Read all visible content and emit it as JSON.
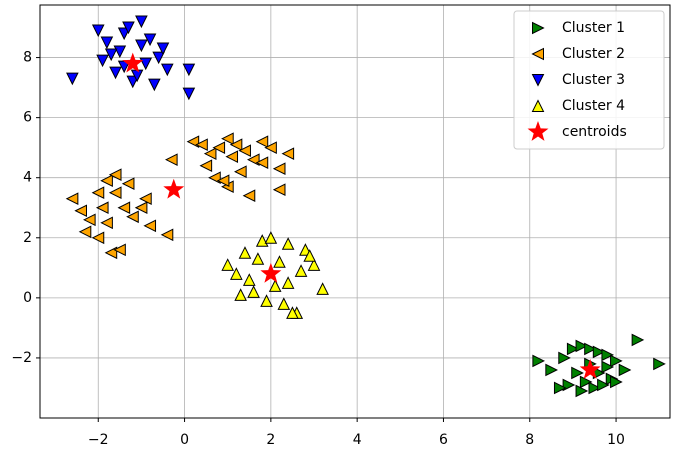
{
  "chart_data": {
    "type": "scatter",
    "xlim": [
      -3.35,
      11.25
    ],
    "ylim": [
      -4.0,
      9.75
    ],
    "xticks": [
      {
        "value": -2,
        "label": "−2"
      },
      0,
      2,
      4,
      6,
      8,
      10
    ],
    "yticks": [
      {
        "value": -2,
        "label": "−2"
      },
      0,
      2,
      4,
      6,
      8
    ],
    "grid": true,
    "legend_loc": "upper right",
    "series": [
      {
        "name": "Cluster 1",
        "color": "#008000",
        "marker": "triangle-right",
        "x": [
          8.8,
          9.0,
          9.2,
          9.4,
          9.6,
          9.8,
          10.0,
          10.2,
          9.1,
          9.3,
          9.5,
          9.7,
          9.9,
          8.9,
          9.2,
          9.6,
          10.0,
          8.5,
          8.2,
          10.5,
          11.0,
          9.4,
          9.8,
          8.7
        ],
        "y": [
          -2.0,
          -1.7,
          -1.6,
          -1.7,
          -1.8,
          -1.9,
          -2.1,
          -2.4,
          -2.5,
          -2.8,
          -3.0,
          -2.9,
          -2.7,
          -2.9,
          -3.1,
          -2.5,
          -2.8,
          -2.4,
          -2.1,
          -1.4,
          -2.2,
          -2.2,
          -2.3,
          -3.0
        ]
      },
      {
        "name": "Cluster 2",
        "color": "#ffa500",
        "marker": "triangle-left",
        "x": [
          -2.6,
          -2.4,
          -2.2,
          -2.0,
          -1.8,
          -1.6,
          -1.4,
          -1.2,
          -1.0,
          -0.8,
          -2.3,
          -2.0,
          -1.7,
          -1.5,
          -1.9,
          -1.6,
          -1.3,
          -0.9,
          -1.8,
          -0.4,
          -0.3,
          0.2,
          0.4,
          0.6,
          0.8,
          1.0,
          1.2,
          1.4,
          1.6,
          1.8,
          2.0,
          2.2,
          2.4,
          0.7,
          1.0,
          1.3,
          1.8,
          2.2,
          0.5,
          1.5,
          1.1,
          0.9
        ],
        "y": [
          3.3,
          2.9,
          2.6,
          3.5,
          3.9,
          3.5,
          3.0,
          2.7,
          3.0,
          2.4,
          2.2,
          2.0,
          1.5,
          1.6,
          3.0,
          4.1,
          3.8,
          3.3,
          2.5,
          2.1,
          4.6,
          5.2,
          5.1,
          4.8,
          5.0,
          5.3,
          5.1,
          4.9,
          4.6,
          5.2,
          5.0,
          4.3,
          4.8,
          4.0,
          3.7,
          4.2,
          4.5,
          3.6,
          4.4,
          3.4,
          4.7,
          3.9
        ]
      },
      {
        "name": "Cluster 3",
        "color": "#0000ff",
        "marker": "triangle-down",
        "x": [
          -2.6,
          -2.0,
          -1.8,
          -1.6,
          -1.4,
          -1.2,
          -1.0,
          -0.8,
          -0.6,
          -0.4,
          -1.9,
          -1.5,
          -1.1,
          -0.9,
          -1.3,
          -1.7,
          -0.7,
          0.1,
          0.1,
          -1.0,
          -1.4,
          -0.5
        ],
        "y": [
          7.3,
          8.9,
          8.5,
          7.5,
          8.8,
          7.2,
          9.2,
          8.6,
          8.0,
          7.6,
          7.9,
          8.2,
          7.4,
          7.8,
          9.0,
          8.1,
          7.1,
          7.6,
          6.8,
          8.4,
          7.7,
          8.3
        ]
      },
      {
        "name": "Cluster 4",
        "color": "#ffff00",
        "marker": "triangle-up",
        "x": [
          1.0,
          1.2,
          1.4,
          1.6,
          1.8,
          2.0,
          2.2,
          2.4,
          2.6,
          2.8,
          3.0,
          3.2,
          1.5,
          1.9,
          2.3,
          2.7,
          2.1,
          1.7,
          2.5,
          2.4,
          1.3,
          2.9
        ],
        "y": [
          1.1,
          0.8,
          1.5,
          0.2,
          1.9,
          2.0,
          1.2,
          0.5,
          -0.5,
          1.6,
          1.1,
          0.3,
          0.6,
          -0.1,
          -0.2,
          0.9,
          0.4,
          1.3,
          -0.5,
          1.8,
          0.1,
          1.4
        ]
      },
      {
        "name": "centroids",
        "color": "#ff0000",
        "marker": "star",
        "x": [
          -1.2,
          -0.25,
          2.0,
          9.4
        ],
        "y": [
          7.8,
          3.6,
          0.8,
          -2.4
        ]
      }
    ]
  }
}
